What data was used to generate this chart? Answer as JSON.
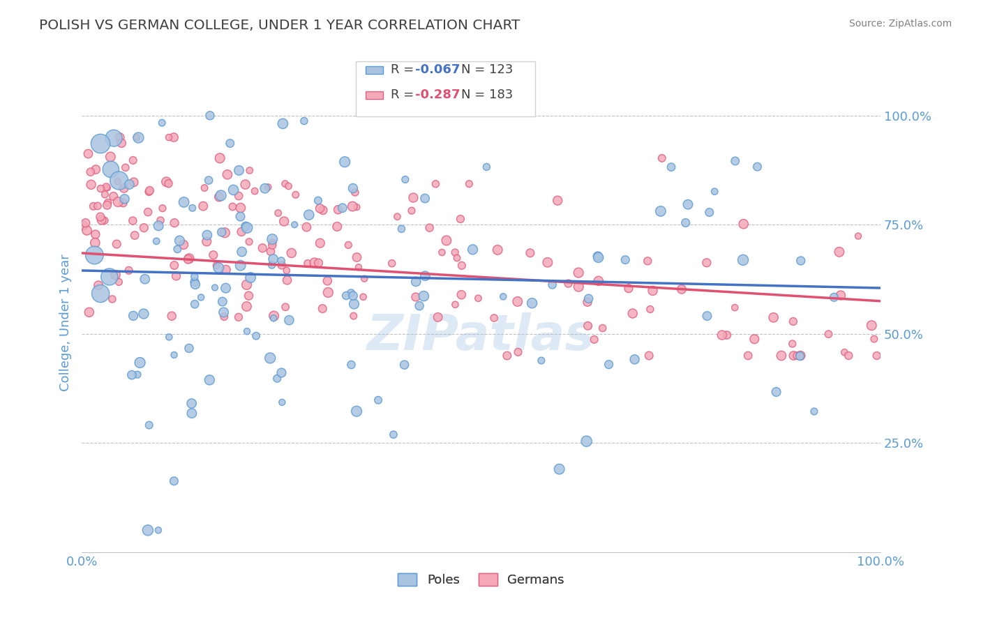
{
  "title": "POLISH VS GERMAN COLLEGE, UNDER 1 YEAR CORRELATION CHART",
  "source_text": "Source: ZipAtlas.com",
  "ylabel": "College, Under 1 year",
  "watermark": "ZIPatlas",
  "xlim": [
    0.0,
    1.0
  ],
  "ylim": [
    0.0,
    1.05
  ],
  "yticks": [
    0.25,
    0.5,
    0.75,
    1.0
  ],
  "ytick_labels": [
    "25.0%",
    "50.0%",
    "75.0%",
    "100.0%"
  ],
  "poles_R": -0.067,
  "poles_N": 123,
  "german_R": -0.287,
  "german_N": 183,
  "poles_color": "#a8c4e0",
  "poles_edge_color": "#5b9bd5",
  "german_color": "#f4a8b8",
  "german_edge_color": "#e06080",
  "poles_line_color": "#4472c4",
  "german_line_color": "#e05070",
  "title_color": "#404040",
  "axis_label_color": "#5b9bd5",
  "tick_label_color": "#5b9bd5",
  "source_color": "#808080",
  "grid_color": "#c0c0c0",
  "background_color": "#ffffff",
  "poles_line_y": [
    0.645,
    0.605
  ],
  "german_line_y": [
    0.685,
    0.575
  ]
}
